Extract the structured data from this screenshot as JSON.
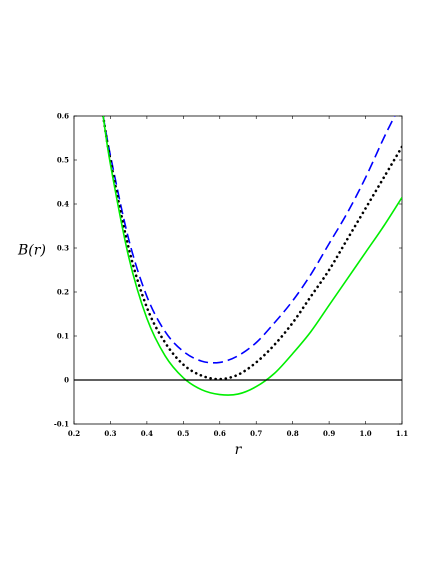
{
  "chart_data": {
    "type": "line",
    "title": "",
    "xlabel": "r",
    "ylabel": "B(r)",
    "xlim": [
      0.2,
      1.1
    ],
    "ylim": [
      -0.1,
      0.6
    ],
    "xticks": [
      "0.2",
      "0.3",
      "0.4",
      "0.5",
      "0.6",
      "0.7",
      "0.8",
      "0.9",
      "1.0",
      "1.1"
    ],
    "yticks": [
      "-0.1",
      "0",
      "0.1",
      "0.2",
      "0.3",
      "0.4",
      "0.5",
      "0.6"
    ],
    "grid": false,
    "legend": "none",
    "hline": 0,
    "series": [
      {
        "color": "#0000ff",
        "style": "dashed",
        "x": [
          0.28,
          0.3,
          0.35,
          0.4,
          0.45,
          0.5,
          0.55,
          0.6,
          0.65,
          0.7,
          0.75,
          0.8,
          0.85,
          0.9,
          0.95,
          1.0,
          1.05,
          1.08
        ],
        "y": [
          0.6,
          0.51,
          0.32,
          0.19,
          0.11,
          0.065,
          0.043,
          0.04,
          0.055,
          0.085,
          0.13,
          0.18,
          0.24,
          0.31,
          0.38,
          0.46,
          0.55,
          0.6
        ]
      },
      {
        "color": "#000000",
        "style": "dotted",
        "x": [
          0.28,
          0.3,
          0.35,
          0.4,
          0.45,
          0.5,
          0.55,
          0.6,
          0.65,
          0.7,
          0.75,
          0.8,
          0.85,
          0.9,
          0.95,
          1.0,
          1.05,
          1.1
        ],
        "y": [
          0.6,
          0.5,
          0.3,
          0.165,
          0.085,
          0.035,
          0.01,
          0.002,
          0.012,
          0.04,
          0.08,
          0.13,
          0.19,
          0.25,
          0.32,
          0.39,
          0.46,
          0.53
        ]
      },
      {
        "color": "#00ee00",
        "style": "solid",
        "x": [
          0.28,
          0.3,
          0.35,
          0.4,
          0.45,
          0.5,
          0.55,
          0.6,
          0.65,
          0.7,
          0.75,
          0.8,
          0.85,
          0.9,
          0.95,
          1.0,
          1.05,
          1.1
        ],
        "y": [
          0.6,
          0.49,
          0.28,
          0.14,
          0.055,
          0.005,
          -0.022,
          -0.033,
          -0.032,
          -0.015,
          0.015,
          0.06,
          0.11,
          0.17,
          0.23,
          0.29,
          0.35,
          0.415
        ]
      }
    ]
  }
}
